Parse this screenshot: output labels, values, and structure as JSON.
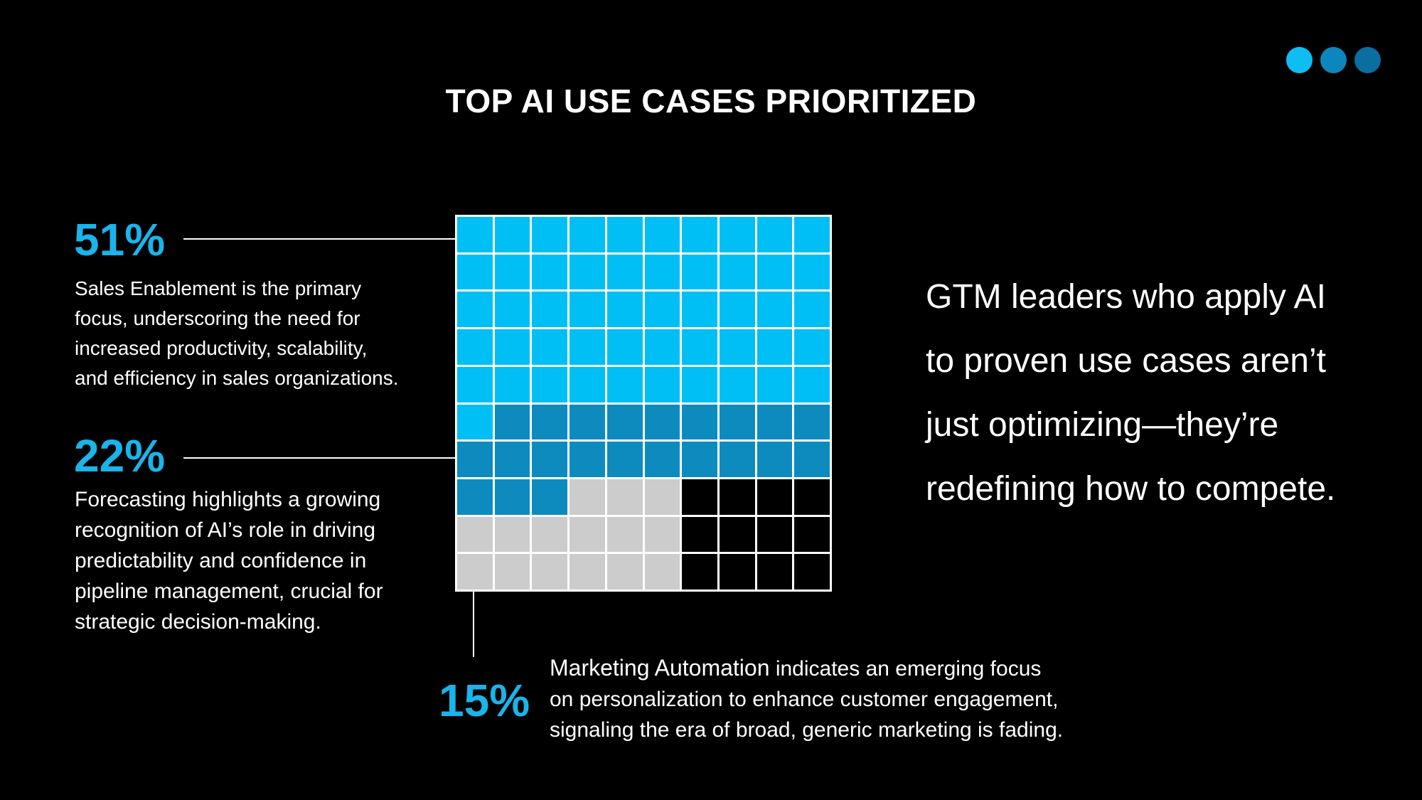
{
  "title": "TOP AI USE CASES PRIORITIZED",
  "dots": [
    "#0ebef2",
    "#0d86bd",
    "#0a6ea0"
  ],
  "chart_data": {
    "type": "waffle",
    "grid": [
      10,
      10
    ],
    "series": [
      {
        "name": "Sales Enablement",
        "value": 51,
        "color": "#00bff4"
      },
      {
        "name": "Forecasting",
        "value": 22,
        "color": "#0d8bbf"
      },
      {
        "name": "Marketing Automation",
        "value": 15,
        "color": "#cccccc"
      },
      {
        "value": 12,
        "color": "#000000"
      }
    ]
  },
  "callouts": {
    "sales": {
      "pct": "51%",
      "lines": [
        "Sales Enablement is the primary",
        "focus, underscoring the need for",
        "increased productivity, scalability,",
        "and efficiency in sales organizations."
      ]
    },
    "forecast": {
      "pct": "22%",
      "lines": [
        "Forecasting highlights a growing",
        "recognition of AI’s role in driving",
        "predictability and confidence in",
        "pipeline management, crucial for",
        "strategic decision-making."
      ]
    },
    "marketing": {
      "pct": "15%",
      "lead": "Marketing Automation",
      "line1_rest": " indicates an emerging focus",
      "line2": "on personalization to enhance customer engagement,",
      "line3": "signaling the era of broad, generic marketing is fading."
    }
  },
  "quote": {
    "lines": [
      "GTM leaders who apply AI",
      "to proven use cases aren’t",
      "just optimizing—they’re",
      "redefining how to compete."
    ]
  }
}
